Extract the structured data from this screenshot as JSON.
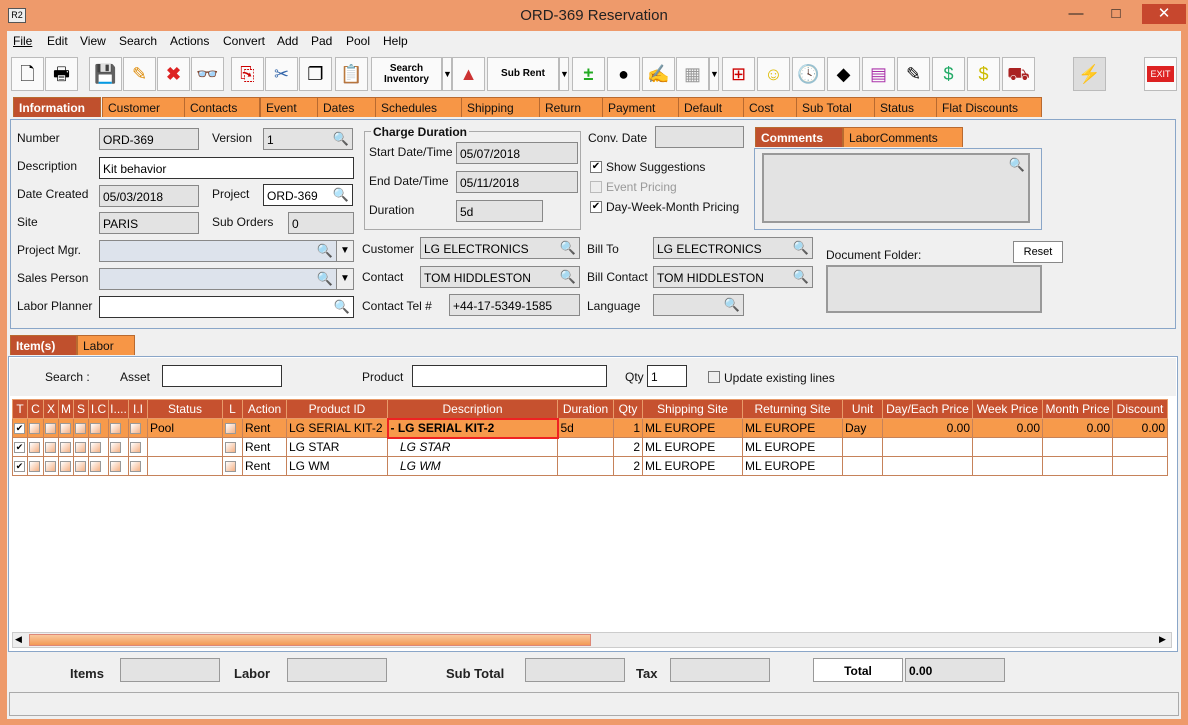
{
  "window": {
    "title": "ORD-369 Reservation",
    "logo": "R2",
    "minimize": "—",
    "maximize": "□",
    "close": "✕"
  },
  "menu": [
    "File",
    "Edit",
    "View",
    "Search",
    "Actions",
    "Convert",
    "Add",
    "Pad",
    "Pool",
    "Help"
  ],
  "toolbar": {
    "search_inventory": "Search Inventory",
    "sub_rent": "Sub Rent",
    "exit": "EXIT"
  },
  "tabs": [
    "Information",
    "Customer",
    "Contacts",
    "Event",
    "Dates",
    "Schedules",
    "Shipping",
    "Return",
    "Payment",
    "Default",
    "Cost",
    "Sub Total",
    "Status",
    "Flat Discounts"
  ],
  "info": {
    "number_label": "Number",
    "number": "ORD-369",
    "version_label": "Version",
    "version": "1",
    "description_label": "Description",
    "description": "Kit behavior",
    "date_created_label": "Date Created",
    "date_created": "05/03/2018",
    "project_label": "Project",
    "project": "ORD-369",
    "site_label": "Site",
    "site": "PARIS",
    "sub_orders_label": "Sub Orders",
    "sub_orders": "0",
    "project_mgr_label": "Project Mgr.",
    "project_mgr": "",
    "sales_person_label": "Sales Person",
    "sales_person": "",
    "labor_planner_label": "Labor Planner",
    "labor_planner": "",
    "charge_duration_title": "Charge Duration",
    "start_label": "Start Date/Time",
    "start": "05/07/2018",
    "end_label": "End Date/Time",
    "end": "05/11/2018",
    "duration_label": "Duration",
    "duration": "5d",
    "conv_date_label": "Conv. Date",
    "conv_date": "",
    "show_suggestions": "Show Suggestions",
    "event_pricing": "Event Pricing",
    "dwm_pricing": "Day-Week-Month Pricing",
    "customer_label": "Customer",
    "customer": "LG ELECTRONICS",
    "contact_label": "Contact",
    "contact": "TOM HIDDLESTON",
    "contact_tel_label": "Contact Tel #",
    "contact_tel": "+44-17-5349-1585",
    "bill_to_label": "Bill To",
    "bill_to": "LG ELECTRONICS",
    "bill_contact_label": "Bill Contact",
    "bill_contact": "TOM HIDDLESTON",
    "language_label": "Language",
    "language": "",
    "comment_tabs": [
      "Comments",
      "LaborComments"
    ],
    "document_folder_label": "Document Folder:",
    "reset": "Reset"
  },
  "lower_tabs": [
    "Item(s)",
    "Labor"
  ],
  "search": {
    "label": "Search :",
    "asset_label": "Asset",
    "asset": "",
    "product_label": "Product",
    "product": "",
    "qty_label": "Qty",
    "qty": "1",
    "update_label": "Update existing lines"
  },
  "grid": {
    "columns": [
      "T",
      "C",
      "X",
      "M",
      "S",
      "I.C",
      "I....",
      "I.I",
      "Status",
      "L",
      "Action",
      "Product ID",
      "Description",
      "Duration",
      "Qty",
      "Shipping Site",
      "Returning Site",
      "Unit",
      "Day/Each Price",
      "Week Price",
      "Month Price",
      "Discount"
    ],
    "rows": [
      {
        "status": "Pool",
        "action": "Rent",
        "product_id": "LG SERIAL KIT-2",
        "description": "-  LG SERIAL KIT-2",
        "duration": "5d",
        "qty": "1",
        "shipping": "ML EUROPE",
        "returning": "ML EUROPE",
        "unit": "Day",
        "day": "0.00",
        "week": "0.00",
        "month": "0.00",
        "discount": "0.00"
      },
      {
        "status": "",
        "action": "Rent",
        "product_id": "LG STAR",
        "description": "LG STAR",
        "duration": "",
        "qty": "2",
        "shipping": "ML EUROPE",
        "returning": "ML EUROPE",
        "unit": "",
        "day": "",
        "week": "",
        "month": "",
        "discount": ""
      },
      {
        "status": "",
        "action": "Rent",
        "product_id": "LG WM",
        "description": "LG WM",
        "duration": "",
        "qty": "2",
        "shipping": "ML EUROPE",
        "returning": "ML EUROPE",
        "unit": "",
        "day": "",
        "week": "",
        "month": "",
        "discount": ""
      }
    ]
  },
  "totals": {
    "items_label": "Items",
    "items": "",
    "labor_label": "Labor",
    "labor": "",
    "subtotal_label": "Sub Total",
    "subtotal": "",
    "tax_label": "Tax",
    "tax": "",
    "total_label": "Total",
    "total": "0.00"
  },
  "colors": {
    "accent": "#F79646",
    "active": "#C0502D",
    "header": "#C6512F",
    "frame": "#EE9A6B"
  }
}
